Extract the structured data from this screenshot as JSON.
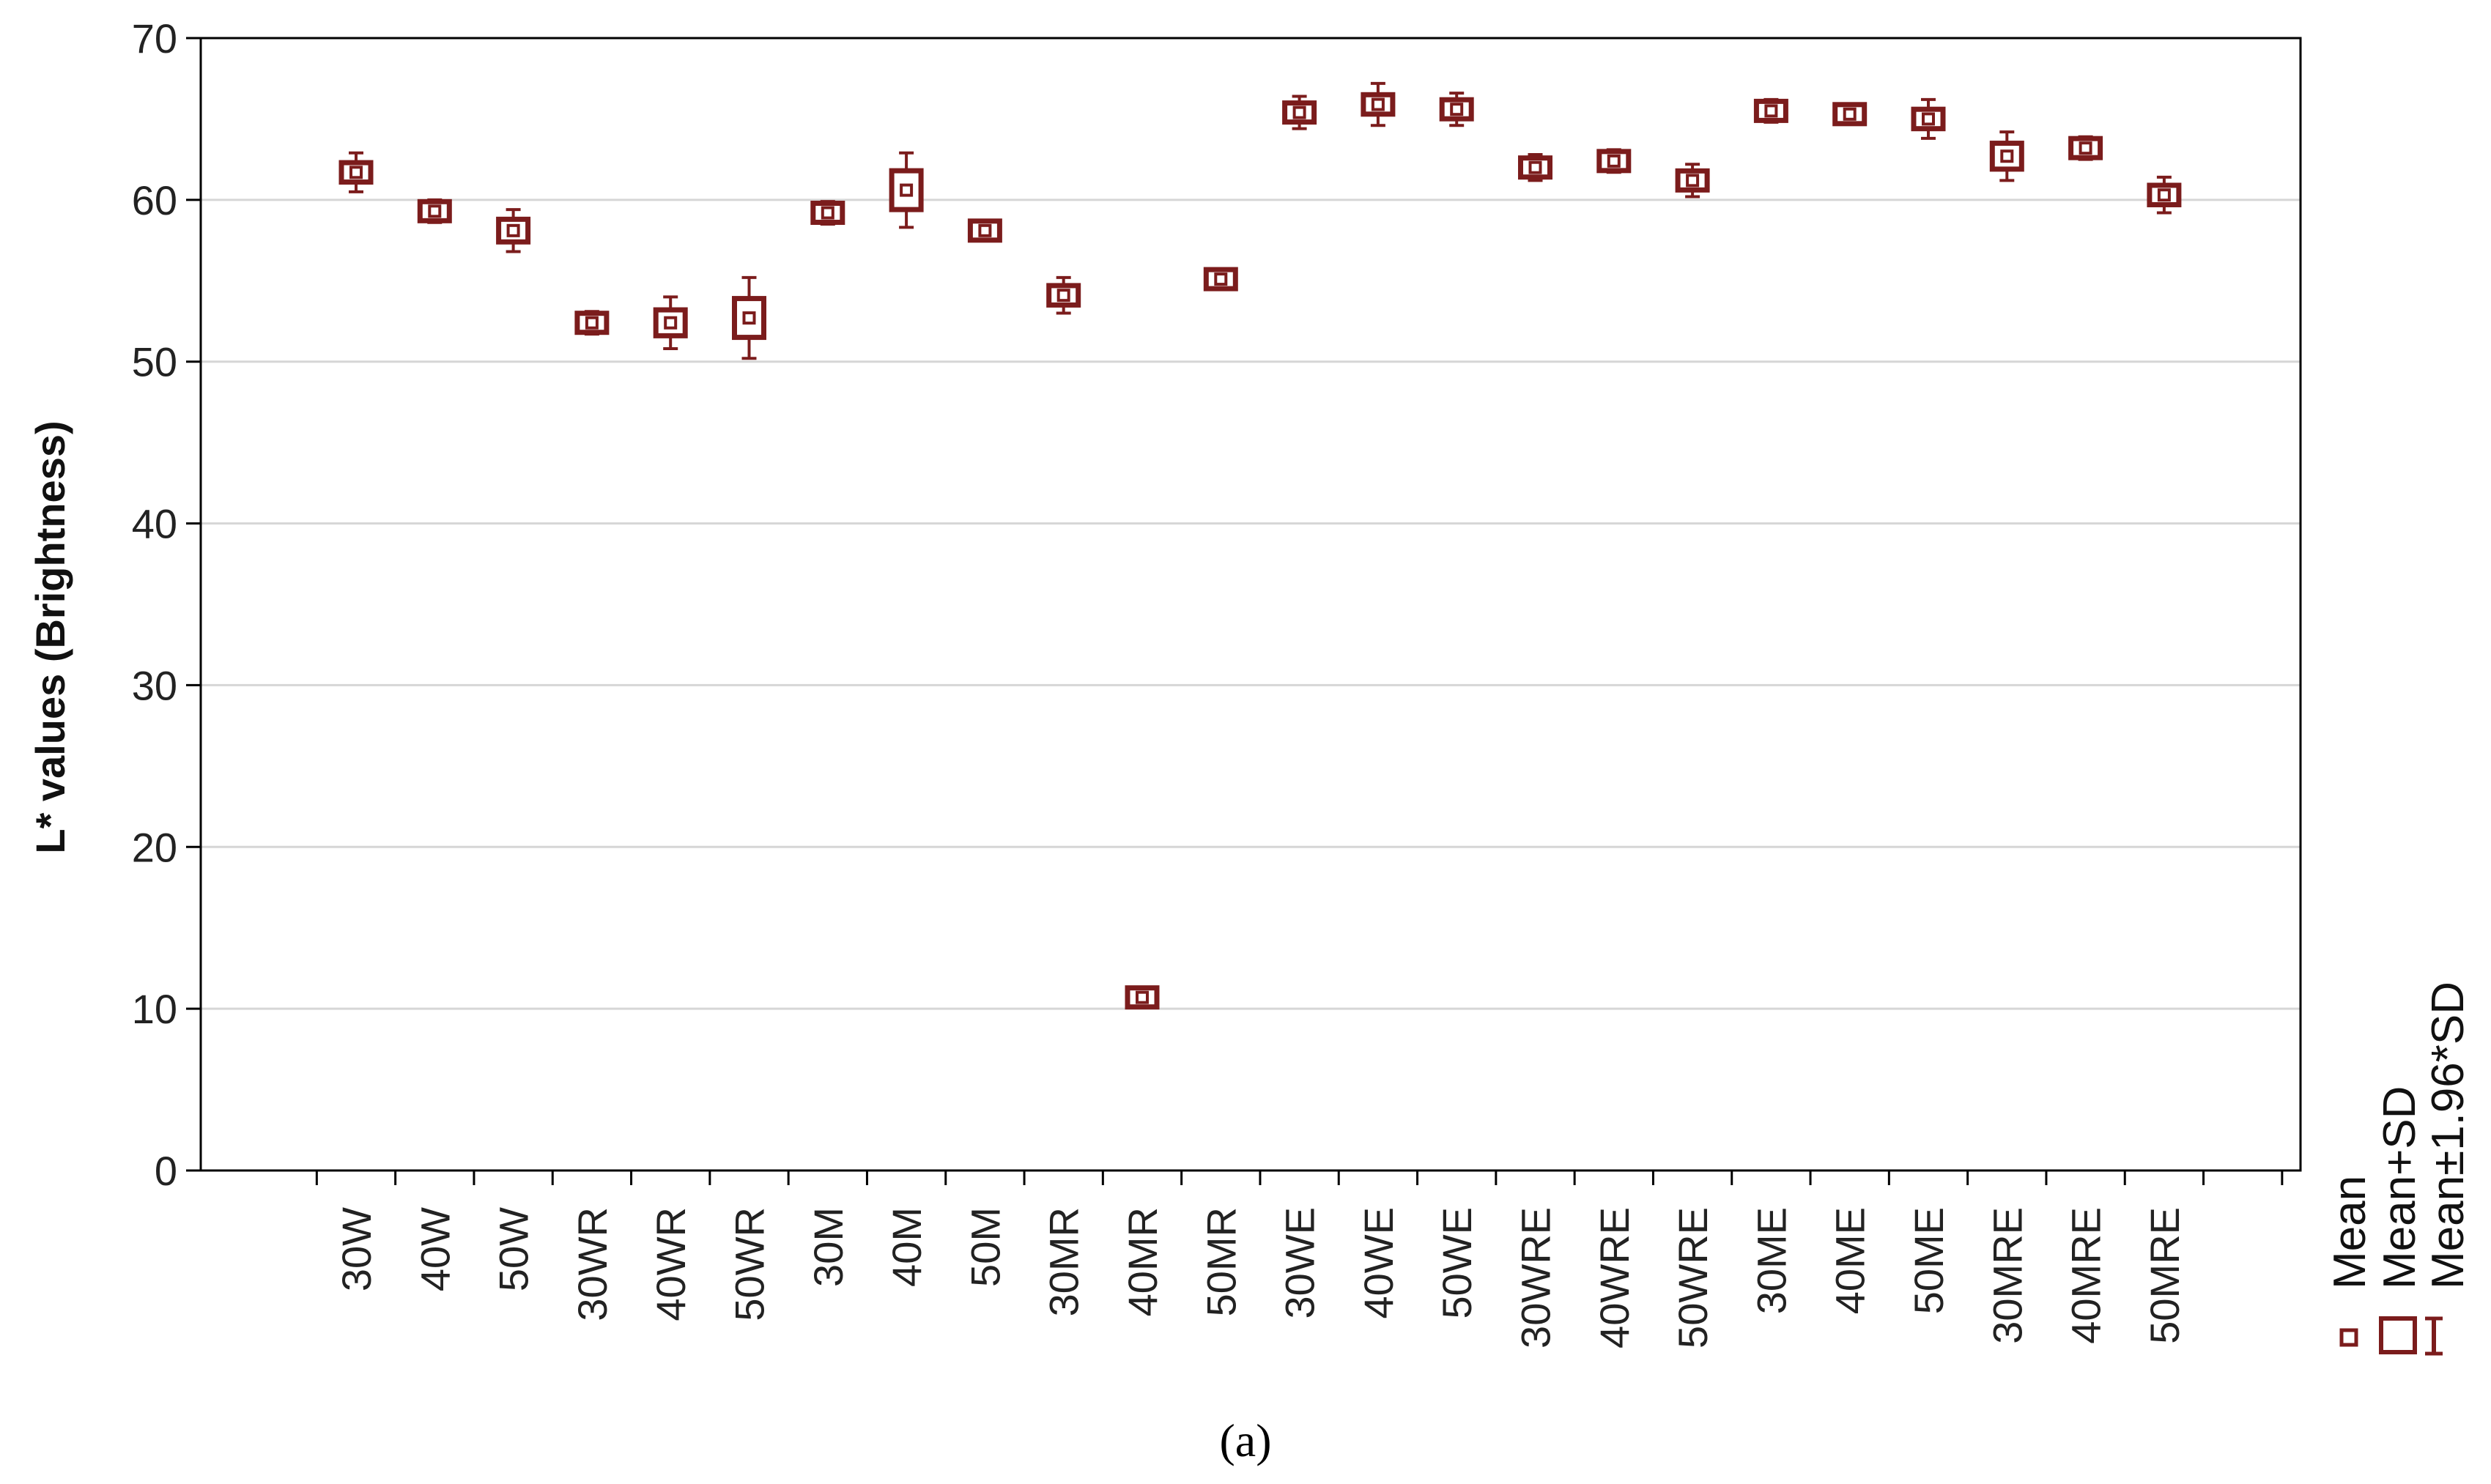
{
  "chart_data": {
    "type": "scatter",
    "ylabel": "L* values (Brightness)",
    "xlabel": "",
    "ylim": [
      0,
      70
    ],
    "yticks": [
      0,
      10,
      20,
      30,
      40,
      50,
      60,
      70
    ],
    "grid": "horizontal",
    "legend_position": "right",
    "marker_color": "#7b1c1c",
    "categories": [
      "30W",
      "40W",
      "50W",
      "30WR",
      "40WR",
      "50WR",
      "30M",
      "40M",
      "50M",
      "30MR",
      "40MR",
      "50MR",
      "30WE",
      "40WE",
      "50WE",
      "30WRE",
      "40WRE",
      "50WRE",
      "30ME",
      "40ME",
      "50ME",
      "30MRE",
      "40MRE",
      "50MRE"
    ],
    "series": [
      {
        "name": "Mean",
        "values": [
          61.7,
          59.3,
          58.1,
          52.4,
          52.4,
          52.7,
          59.2,
          60.6,
          58.1,
          54.1,
          10.7,
          55.1,
          65.4,
          65.9,
          65.6,
          62.0,
          62.4,
          61.2,
          65.5,
          65.3,
          65.0,
          62.7,
          63.2,
          60.3
        ]
      },
      {
        "name": "Mean+SD",
        "values": [
          0.6,
          0.4,
          0.7,
          0.4,
          0.8,
          1.2,
          0.4,
          1.2,
          0.3,
          0.6,
          0.3,
          0.3,
          0.5,
          0.6,
          0.5,
          0.4,
          0.4,
          0.5,
          0.4,
          0.3,
          0.6,
          0.8,
          0.4,
          0.6
        ]
      },
      {
        "name": "Mean±1.96*SD",
        "values": [
          1.2,
          0.7,
          1.3,
          0.7,
          1.6,
          2.5,
          0.7,
          2.3,
          0.6,
          1.1,
          0.6,
          0.6,
          1.0,
          1.3,
          1.0,
          0.8,
          0.7,
          1.0,
          0.7,
          0.6,
          1.2,
          1.5,
          0.7,
          1.1
        ]
      }
    ],
    "caption": "(a)"
  }
}
